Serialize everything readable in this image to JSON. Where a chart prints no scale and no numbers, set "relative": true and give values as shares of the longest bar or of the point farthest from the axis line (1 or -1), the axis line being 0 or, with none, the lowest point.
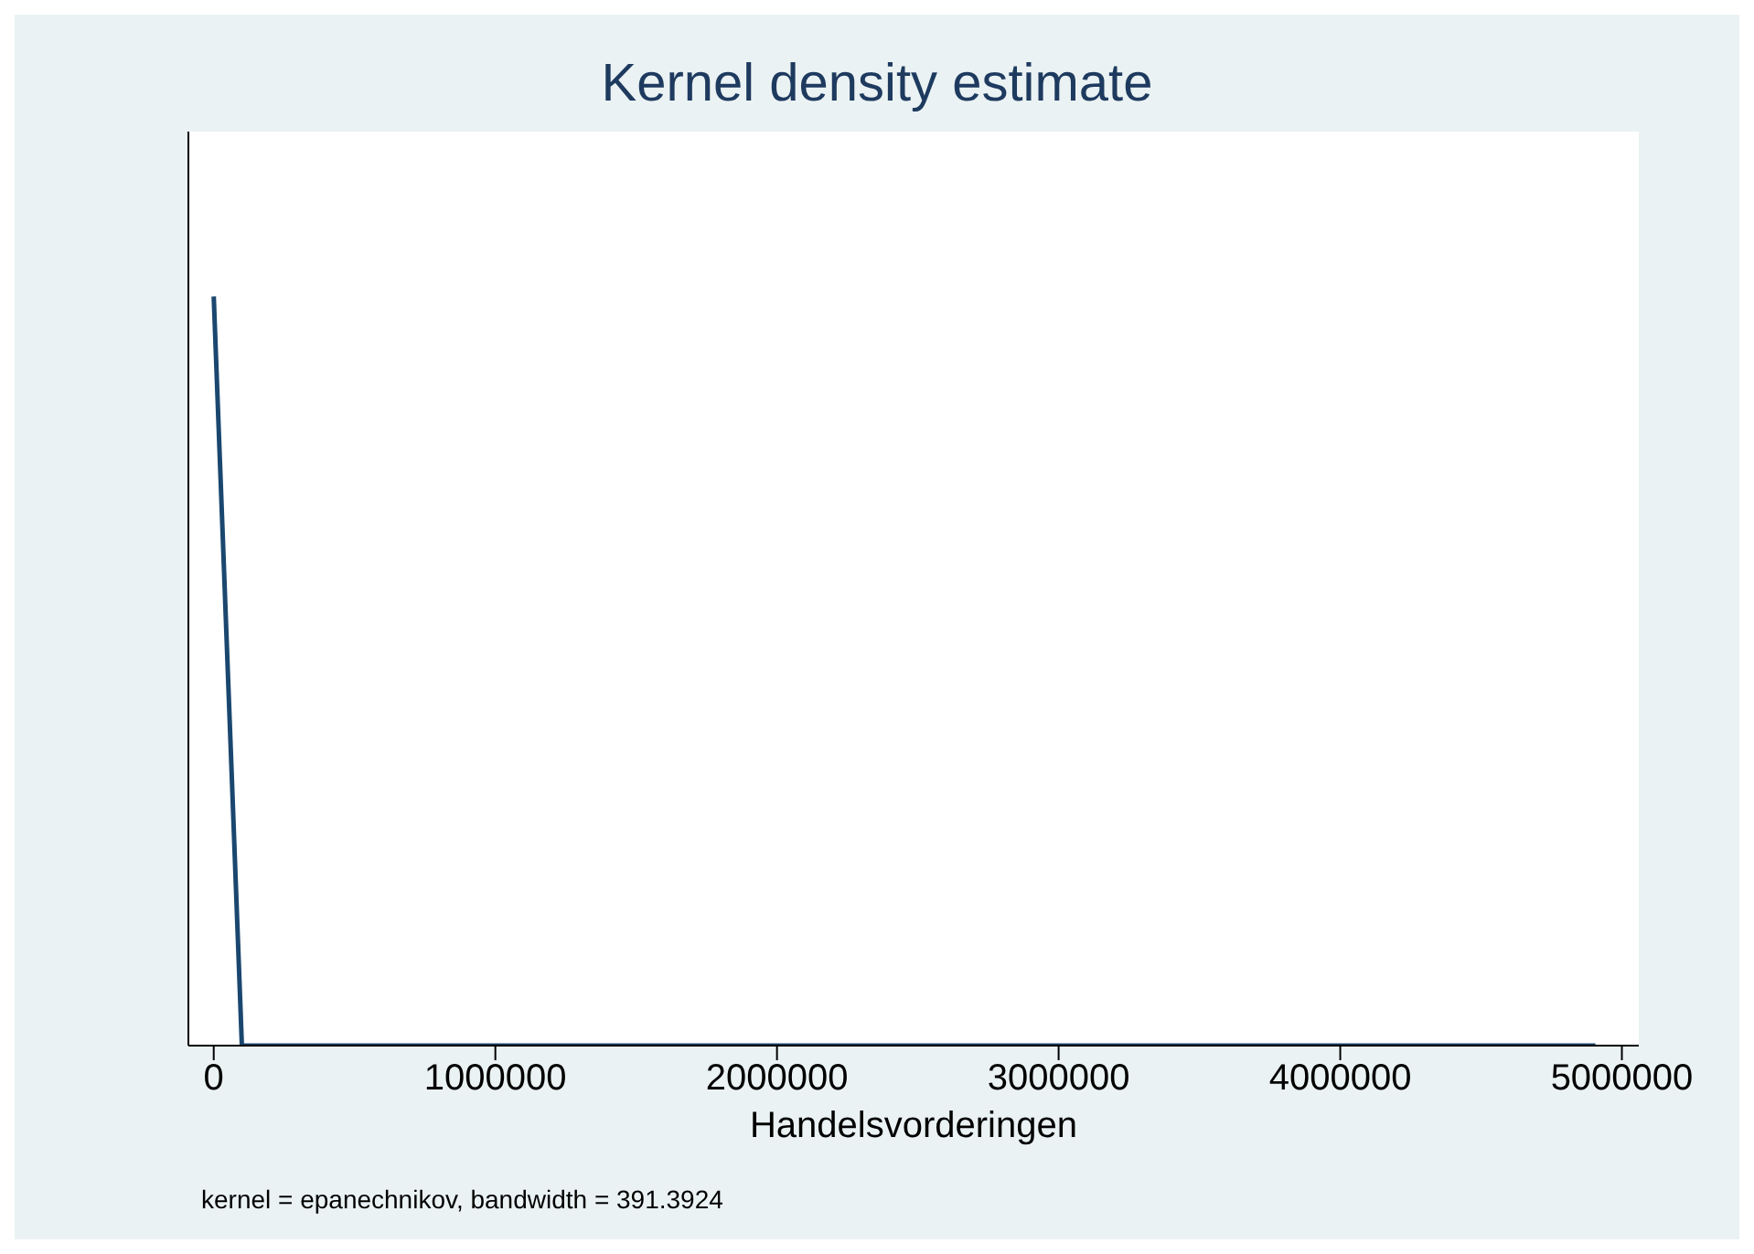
{
  "chart_data": {
    "type": "line",
    "title": "Kernel density estimate",
    "xlabel": "Handelsvorderingen",
    "annotations": [
      "kernel = epanechnikov, bandwidth = 391.3924"
    ],
    "x": [
      0,
      100000,
      4906000
    ],
    "series": [
      {
        "color": "#1a476f",
        "values": [
          1,
          0,
          0
        ]
      }
    ],
    "relative": true,
    "xlim": [
      -90000,
      5060000
    ],
    "xticks": [
      0,
      1000000,
      2000000,
      3000000,
      4000000,
      5000000
    ],
    "tick_labels": "x",
    "marker": "none",
    "line_style": "solid",
    "legend": false
  }
}
